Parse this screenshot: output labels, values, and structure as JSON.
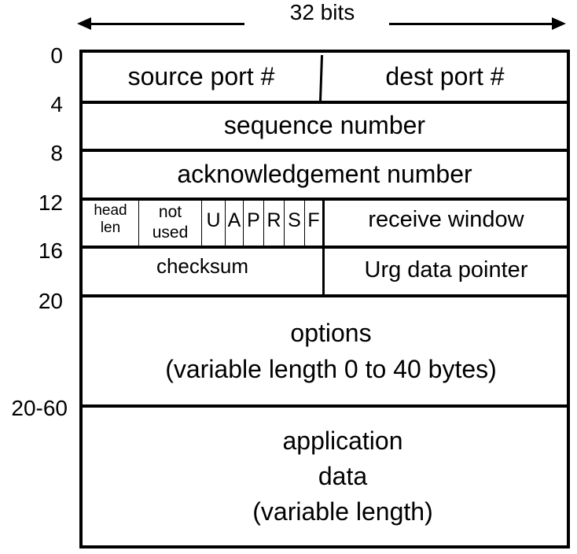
{
  "width_indicator": {
    "label": "32 bits"
  },
  "offsets": [
    "0",
    "4",
    "8",
    "12",
    "16",
    "20",
    "20-60"
  ],
  "fields": {
    "source_port": "source port #",
    "dest_port": "dest port #",
    "sequence_number": "sequence number",
    "acknowledgement_number": "acknowledgement number",
    "head_len": [
      "head",
      "len"
    ],
    "not_used": [
      "not",
      "used"
    ],
    "flags": [
      "U",
      "A",
      "P",
      "R",
      "S",
      "F"
    ],
    "receive_window": "receive window",
    "checksum": "checksum",
    "urg_data_pointer": "Urg data pointer",
    "options": [
      "options",
      "(variable length 0 to 40 bytes)"
    ],
    "application_data": [
      "application",
      "data",
      "(variable length)"
    ]
  },
  "colors": {
    "line": "#000000",
    "background": "#ffffff"
  }
}
